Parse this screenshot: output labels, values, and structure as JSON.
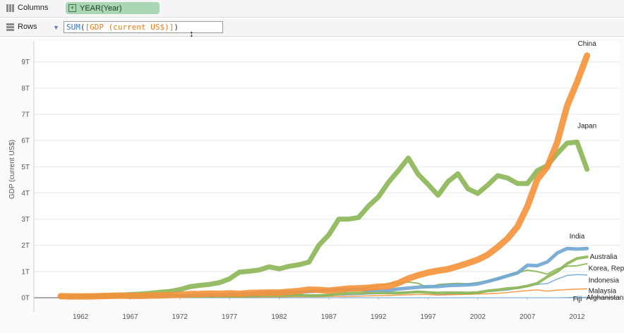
{
  "columns_shelf": {
    "label": "Columns",
    "pill": "YEAR(Year)",
    "pill_icon": "plus-box-icon"
  },
  "rows_shelf": {
    "label": "Rows",
    "formula_func": "SUM",
    "formula_open": "(",
    "formula_field": "[GDP (current US$)]",
    "formula_close": ")"
  },
  "colors": {
    "china": "#f5923a",
    "japan": "#8bb654",
    "blue": "#6fa6d2",
    "green": "#8bb654"
  },
  "chart_data": {
    "type": "line",
    "title": "",
    "xlabel": "",
    "ylabel": "GDP (current US$)",
    "xlim": [
      1957.3,
      2016.3
    ],
    "ylim": [
      0,
      9.8
    ],
    "y_unit": "T",
    "x_ticks": [
      1962,
      1967,
      1972,
      1977,
      1982,
      1987,
      1992,
      1997,
      2002,
      2007,
      2012
    ],
    "y_ticks": [
      "0T",
      "1T",
      "2T",
      "3T",
      "4T",
      "5T",
      "6T",
      "7T",
      "8T",
      "9T"
    ],
    "grid": true,
    "legend": "none",
    "x": [
      1960,
      1961,
      1962,
      1963,
      1964,
      1965,
      1966,
      1967,
      1968,
      1969,
      1970,
      1971,
      1972,
      1973,
      1974,
      1975,
      1976,
      1977,
      1978,
      1979,
      1980,
      1981,
      1982,
      1983,
      1984,
      1985,
      1986,
      1987,
      1988,
      1989,
      1990,
      1991,
      1992,
      1993,
      1994,
      1995,
      1996,
      1997,
      1998,
      1999,
      2000,
      2001,
      2002,
      2003,
      2004,
      2005,
      2006,
      2007,
      2008,
      2009,
      2010,
      2011,
      2012,
      2013
    ],
    "series": [
      {
        "name": "China",
        "color": "#f5923a",
        "width": 9,
        "values": [
          0.06,
          0.05,
          0.05,
          0.05,
          0.06,
          0.07,
          0.08,
          0.07,
          0.07,
          0.08,
          0.09,
          0.1,
          0.11,
          0.14,
          0.14,
          0.16,
          0.15,
          0.17,
          0.15,
          0.18,
          0.19,
          0.2,
          0.2,
          0.23,
          0.26,
          0.31,
          0.3,
          0.27,
          0.31,
          0.35,
          0.36,
          0.38,
          0.42,
          0.44,
          0.56,
          0.73,
          0.86,
          0.96,
          1.03,
          1.09,
          1.2,
          1.32,
          1.45,
          1.64,
          1.93,
          2.26,
          2.71,
          3.49,
          4.52,
          4.99,
          5.93,
          7.32,
          8.23,
          9.24
        ]
      },
      {
        "name": "Japan",
        "color": "#8bb654",
        "width": 7,
        "values": [
          0.04,
          0.05,
          0.06,
          0.07,
          0.08,
          0.09,
          0.1,
          0.12,
          0.14,
          0.17,
          0.21,
          0.24,
          0.31,
          0.42,
          0.47,
          0.51,
          0.58,
          0.72,
          0.98,
          1.01,
          1.06,
          1.18,
          1.1,
          1.2,
          1.26,
          1.36,
          2.0,
          2.4,
          3.0,
          3.0,
          3.06,
          3.5,
          3.85,
          4.4,
          4.85,
          5.33,
          4.71,
          4.32,
          3.91,
          4.43,
          4.73,
          4.16,
          3.98,
          4.3,
          4.66,
          4.57,
          4.36,
          4.36,
          4.85,
          5.04,
          5.5,
          5.9,
          5.94,
          4.9
        ]
      },
      {
        "name": "India",
        "color": "#6fa6d2",
        "width": 5,
        "values": [
          0.037,
          0.039,
          0.042,
          0.048,
          0.056,
          0.059,
          0.046,
          0.05,
          0.053,
          0.058,
          0.062,
          0.067,
          0.071,
          0.085,
          0.099,
          0.098,
          0.103,
          0.121,
          0.137,
          0.152,
          0.189,
          0.197,
          0.204,
          0.222,
          0.215,
          0.235,
          0.253,
          0.283,
          0.302,
          0.302,
          0.327,
          0.275,
          0.293,
          0.284,
          0.333,
          0.367,
          0.4,
          0.423,
          0.429,
          0.467,
          0.476,
          0.494,
          0.524,
          0.618,
          0.721,
          0.834,
          0.949,
          1.238,
          1.224,
          1.365,
          1.708,
          1.88,
          1.859,
          1.877
        ]
      },
      {
        "name": "Australia",
        "color": "#8bb654",
        "width": 4,
        "values": [
          0.02,
          0.02,
          0.02,
          0.02,
          0.02,
          0.03,
          0.03,
          0.03,
          0.03,
          0.04,
          0.04,
          0.05,
          0.05,
          0.06,
          0.06,
          0.06,
          0.06,
          0.06,
          0.06,
          0.07,
          0.08,
          0.09,
          0.09,
          0.09,
          0.1,
          0.08,
          0.08,
          0.1,
          0.15,
          0.17,
          0.18,
          0.19,
          0.19,
          0.18,
          0.18,
          0.2,
          0.22,
          0.2,
          0.18,
          0.19,
          0.19,
          0.18,
          0.2,
          0.26,
          0.3,
          0.35,
          0.38,
          0.45,
          0.55,
          0.8,
          1.0,
          1.3,
          1.5,
          1.56
        ]
      },
      {
        "name": "Korea, Rep.",
        "color": "#8bb654",
        "width": 2,
        "values": [
          0.02,
          0.02,
          0.02,
          0.02,
          0.02,
          0.03,
          0.03,
          0.03,
          0.04,
          0.05,
          0.06,
          0.07,
          0.08,
          0.09,
          0.1,
          0.12,
          0.13,
          0.14,
          0.17,
          0.17,
          0.18,
          0.19,
          0.2,
          0.22,
          0.22,
          0.24,
          0.25,
          0.27,
          0.3,
          0.32,
          0.35,
          0.4,
          0.45,
          0.55,
          0.56,
          0.6,
          0.55,
          0.38,
          0.5,
          0.53,
          0.55,
          0.53,
          0.58,
          0.65,
          0.72,
          0.85,
          0.95,
          1.05,
          1.0,
          0.9,
          1.1,
          1.2,
          1.22,
          1.3
        ]
      },
      {
        "name": "Indonesia",
        "color": "#6fa6d2",
        "width": 1.5,
        "values": [
          0.01,
          0.01,
          0.01,
          0.01,
          0.01,
          0.02,
          0.02,
          0.02,
          0.02,
          0.02,
          0.02,
          0.03,
          0.03,
          0.04,
          0.04,
          0.05,
          0.05,
          0.06,
          0.06,
          0.07,
          0.09,
          0.1,
          0.1,
          0.1,
          0.1,
          0.1,
          0.1,
          0.1,
          0.1,
          0.11,
          0.12,
          0.14,
          0.15,
          0.18,
          0.2,
          0.22,
          0.25,
          0.23,
          0.1,
          0.14,
          0.16,
          0.16,
          0.2,
          0.24,
          0.26,
          0.29,
          0.36,
          0.43,
          0.51,
          0.54,
          0.71,
          0.85,
          0.88,
          0.87
        ]
      },
      {
        "name": "Malaysia",
        "color": "#f5923a",
        "width": 1.5,
        "values": [
          0.01,
          0.01,
          0.01,
          0.01,
          0.01,
          0.01,
          0.01,
          0.01,
          0.01,
          0.01,
          0.01,
          0.01,
          0.01,
          0.02,
          0.02,
          0.02,
          0.02,
          0.02,
          0.02,
          0.03,
          0.03,
          0.03,
          0.03,
          0.04,
          0.04,
          0.04,
          0.04,
          0.05,
          0.05,
          0.05,
          0.06,
          0.07,
          0.08,
          0.09,
          0.1,
          0.11,
          0.12,
          0.12,
          0.1,
          0.11,
          0.12,
          0.13,
          0.14,
          0.15,
          0.17,
          0.2,
          0.24,
          0.27,
          0.3,
          0.25,
          0.29,
          0.31,
          0.33,
          0.34
        ]
      },
      {
        "name": "Fiji",
        "color": "#6fa6d2",
        "width": 1,
        "values": [
          0,
          0,
          0,
          0,
          0,
          0,
          0,
          0,
          0,
          0,
          0,
          0,
          0,
          0,
          0,
          0,
          0,
          0,
          0,
          0,
          0,
          0,
          0,
          0,
          0,
          0,
          0,
          0,
          0,
          0,
          0,
          0,
          0,
          0,
          0,
          0,
          0,
          0,
          0,
          0,
          0,
          0,
          0,
          0,
          0,
          0,
          0,
          0,
          0,
          0,
          0,
          0,
          0,
          0
        ]
      },
      {
        "name": "Afghanistan",
        "color": "#6fa6d2",
        "width": 1,
        "values": [
          0,
          0,
          0,
          0,
          0,
          0,
          0,
          0,
          0,
          0,
          0,
          0,
          0,
          0,
          0,
          0,
          0,
          0,
          0,
          0,
          0,
          0,
          0,
          0,
          0,
          0,
          0,
          0,
          0,
          0,
          0,
          0,
          0,
          0,
          0,
          0,
          0,
          0,
          0,
          0,
          0,
          0,
          0,
          0,
          0,
          0,
          0,
          0,
          0,
          0,
          0,
          0.01,
          0.02,
          0.02
        ]
      }
    ],
    "annotations": [
      {
        "text": "China",
        "x": 2013,
        "y": 9.24,
        "anchor": "above"
      },
      {
        "text": "Japan",
        "x": 2013,
        "y": 5.94,
        "anchor": "above-far"
      },
      {
        "text": "India",
        "x": 2012,
        "y": 1.88,
        "anchor": "above"
      },
      {
        "text": "Australia",
        "x": 2013,
        "y": 1.56,
        "anchor": "right"
      },
      {
        "text": "Korea, Rep.",
        "x": 2013,
        "y": 1.3,
        "anchor": "right-low"
      },
      {
        "text": "Indonesia",
        "x": 2013,
        "y": 0.87,
        "anchor": "right-low"
      },
      {
        "text": "Malaysia",
        "x": 2013,
        "y": 0.34,
        "anchor": "right-low"
      },
      {
        "text": "Fiji",
        "x": 2013,
        "y": 0,
        "anchor": "right-low"
      },
      {
        "text": "Afghanistan",
        "x": 2013,
        "y": 0,
        "anchor": "right-low-offset"
      }
    ]
  }
}
